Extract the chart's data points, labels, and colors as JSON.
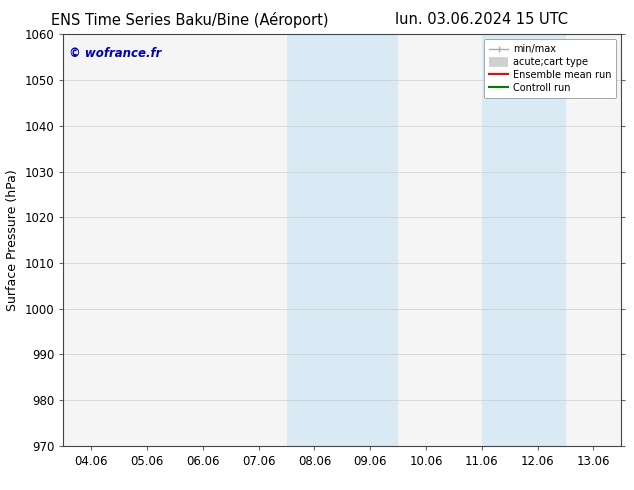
{
  "title_left": "ENS Time Series Baku/Bine (Aéroport)",
  "title_right": "lun. 03.06.2024 15 UTC",
  "ylabel": "Surface Pressure (hPa)",
  "xlabel": "",
  "ylim": [
    970,
    1060
  ],
  "yticks": [
    970,
    980,
    990,
    1000,
    1010,
    1020,
    1030,
    1040,
    1050,
    1060
  ],
  "xtick_labels": [
    "04.06",
    "05.06",
    "06.06",
    "07.06",
    "08.06",
    "09.06",
    "10.06",
    "11.06",
    "12.06",
    "13.06"
  ],
  "xtick_positions": [
    0,
    1,
    2,
    3,
    4,
    5,
    6,
    7,
    8,
    9
  ],
  "xlim": [
    -0.5,
    9.5
  ],
  "shaded_regions": [
    {
      "x_start": 3.5,
      "x_end": 5.5
    },
    {
      "x_start": 7.0,
      "x_end": 8.5
    }
  ],
  "shaded_color": "#daeaf5",
  "watermark_text": "© wofrance.fr",
  "watermark_color": "#0000bb",
  "background_color": "#ffffff",
  "plot_bg_color": "#f5f5f5",
  "legend_entries": [
    {
      "label": "min/max",
      "color": "#aaaaaa",
      "lw": 1.2
    },
    {
      "label": "acute;cart type",
      "color": "#cccccc",
      "lw": 5
    },
    {
      "label": "Ensemble mean run",
      "color": "red",
      "lw": 1.5
    },
    {
      "label": "Controll run",
      "color": "green",
      "lw": 1.5
    }
  ],
  "grid_color": "#cccccc",
  "title_fontsize": 10.5,
  "tick_fontsize": 8.5,
  "ylabel_fontsize": 9
}
